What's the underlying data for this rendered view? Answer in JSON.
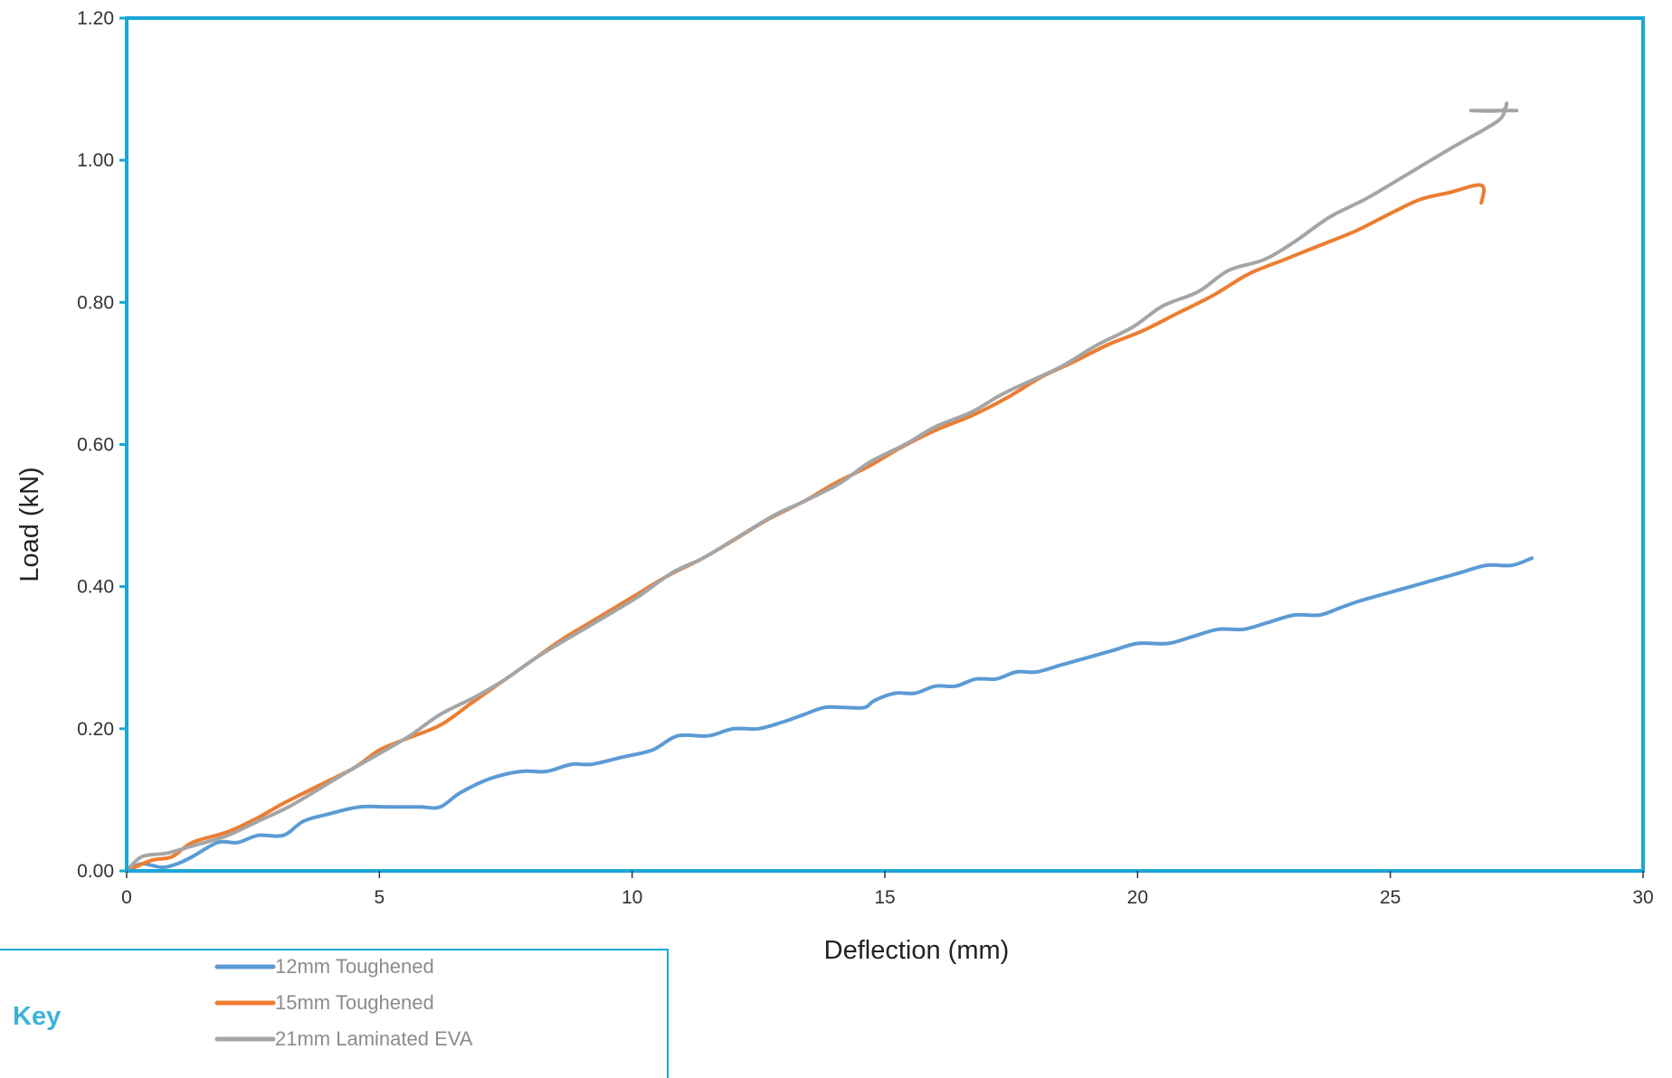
{
  "chart_data": {
    "type": "line",
    "xlabel": "Deflection (mm)",
    "ylabel": "Load (kN)",
    "xlim": [
      0,
      30
    ],
    "ylim": [
      0,
      1.2
    ],
    "x_ticks": [
      "0",
      "5",
      "10",
      "15",
      "20",
      "25",
      "30"
    ],
    "y_ticks": [
      "0.00",
      "0.20",
      "0.40",
      "0.60",
      "0.80",
      "1.00",
      "1.20"
    ],
    "grid": false,
    "legend_title": "Key",
    "legend_position": "bottom-left",
    "axis_color": "#1aa7d6",
    "series": [
      {
        "name": "12mm Toughened",
        "color": "#5b9bd5",
        "points": [
          [
            0,
            0
          ],
          [
            0.3,
            0.01
          ],
          [
            0.7,
            0.005
          ],
          [
            1.0,
            0.01
          ],
          [
            1.3,
            0.02
          ],
          [
            1.8,
            0.04
          ],
          [
            2.2,
            0.04
          ],
          [
            2.6,
            0.05
          ],
          [
            3.1,
            0.05
          ],
          [
            3.5,
            0.07
          ],
          [
            4.0,
            0.08
          ],
          [
            4.6,
            0.09
          ],
          [
            5.2,
            0.09
          ],
          [
            5.8,
            0.09
          ],
          [
            6.2,
            0.09
          ],
          [
            6.6,
            0.11
          ],
          [
            7.2,
            0.13
          ],
          [
            7.8,
            0.14
          ],
          [
            8.3,
            0.14
          ],
          [
            8.8,
            0.15
          ],
          [
            9.2,
            0.15
          ],
          [
            9.8,
            0.16
          ],
          [
            10.4,
            0.17
          ],
          [
            10.9,
            0.19
          ],
          [
            11.5,
            0.19
          ],
          [
            12.0,
            0.2
          ],
          [
            12.5,
            0.2
          ],
          [
            13.0,
            0.21
          ],
          [
            13.4,
            0.22
          ],
          [
            13.8,
            0.23
          ],
          [
            14.2,
            0.23
          ],
          [
            14.6,
            0.23
          ],
          [
            14.8,
            0.24
          ],
          [
            15.2,
            0.25
          ],
          [
            15.6,
            0.25
          ],
          [
            16.0,
            0.26
          ],
          [
            16.4,
            0.26
          ],
          [
            16.8,
            0.27
          ],
          [
            17.2,
            0.27
          ],
          [
            17.6,
            0.28
          ],
          [
            18.0,
            0.28
          ],
          [
            18.5,
            0.29
          ],
          [
            19.0,
            0.3
          ],
          [
            19.5,
            0.31
          ],
          [
            20.0,
            0.32
          ],
          [
            20.6,
            0.32
          ],
          [
            21.1,
            0.33
          ],
          [
            21.6,
            0.34
          ],
          [
            22.1,
            0.34
          ],
          [
            22.6,
            0.35
          ],
          [
            23.1,
            0.36
          ],
          [
            23.6,
            0.36
          ],
          [
            24.0,
            0.37
          ],
          [
            24.4,
            0.38
          ],
          [
            24.9,
            0.39
          ],
          [
            25.4,
            0.4
          ],
          [
            25.9,
            0.41
          ],
          [
            26.4,
            0.42
          ],
          [
            26.9,
            0.43
          ],
          [
            27.4,
            0.43
          ],
          [
            27.8,
            0.44
          ]
        ]
      },
      {
        "name": "15mm Toughened",
        "color": "#ed7d31",
        "points": [
          [
            0,
            0
          ],
          [
            0.5,
            0.015
          ],
          [
            0.9,
            0.02
          ],
          [
            1.3,
            0.04
          ],
          [
            2.0,
            0.055
          ],
          [
            2.6,
            0.075
          ],
          [
            3.1,
            0.095
          ],
          [
            3.8,
            0.12
          ],
          [
            4.5,
            0.145
          ],
          [
            5.0,
            0.17
          ],
          [
            5.5,
            0.185
          ],
          [
            6.2,
            0.205
          ],
          [
            6.8,
            0.235
          ],
          [
            7.4,
            0.265
          ],
          [
            8.0,
            0.295
          ],
          [
            8.6,
            0.325
          ],
          [
            9.3,
            0.355
          ],
          [
            10.0,
            0.385
          ],
          [
            10.7,
            0.415
          ],
          [
            11.4,
            0.44
          ],
          [
            12.0,
            0.465
          ],
          [
            12.7,
            0.495
          ],
          [
            13.4,
            0.52
          ],
          [
            14.0,
            0.545
          ],
          [
            14.7,
            0.57
          ],
          [
            15.3,
            0.595
          ],
          [
            16.0,
            0.62
          ],
          [
            16.7,
            0.64
          ],
          [
            17.4,
            0.665
          ],
          [
            18.1,
            0.695
          ],
          [
            18.7,
            0.715
          ],
          [
            19.4,
            0.74
          ],
          [
            20.1,
            0.76
          ],
          [
            20.8,
            0.785
          ],
          [
            21.5,
            0.81
          ],
          [
            22.2,
            0.84
          ],
          [
            22.9,
            0.86
          ],
          [
            23.6,
            0.88
          ],
          [
            24.3,
            0.9
          ],
          [
            25.0,
            0.925
          ],
          [
            25.6,
            0.945
          ],
          [
            26.2,
            0.955
          ],
          [
            26.7,
            0.965
          ],
          [
            26.85,
            0.96
          ],
          [
            26.8,
            0.94
          ]
        ]
      },
      {
        "name": "21mm Laminated EVA",
        "color": "#a5a5a5",
        "points": [
          [
            0,
            0
          ],
          [
            0.3,
            0.02
          ],
          [
            0.8,
            0.025
          ],
          [
            1.3,
            0.035
          ],
          [
            2.0,
            0.05
          ],
          [
            2.6,
            0.07
          ],
          [
            3.2,
            0.09
          ],
          [
            3.8,
            0.115
          ],
          [
            4.5,
            0.145
          ],
          [
            5.0,
            0.165
          ],
          [
            5.6,
            0.19
          ],
          [
            6.2,
            0.22
          ],
          [
            6.9,
            0.245
          ],
          [
            7.5,
            0.27
          ],
          [
            8.1,
            0.3
          ],
          [
            8.8,
            0.33
          ],
          [
            9.4,
            0.355
          ],
          [
            10.1,
            0.385
          ],
          [
            10.8,
            0.42
          ],
          [
            11.4,
            0.44
          ],
          [
            12.1,
            0.47
          ],
          [
            12.8,
            0.5
          ],
          [
            13.4,
            0.52
          ],
          [
            14.1,
            0.545
          ],
          [
            14.7,
            0.575
          ],
          [
            15.4,
            0.6
          ],
          [
            16.0,
            0.625
          ],
          [
            16.7,
            0.645
          ],
          [
            17.3,
            0.67
          ],
          [
            17.9,
            0.69
          ],
          [
            18.5,
            0.71
          ],
          [
            19.2,
            0.74
          ],
          [
            19.9,
            0.765
          ],
          [
            20.5,
            0.795
          ],
          [
            21.2,
            0.815
          ],
          [
            21.8,
            0.845
          ],
          [
            22.5,
            0.86
          ],
          [
            23.1,
            0.885
          ],
          [
            23.8,
            0.92
          ],
          [
            24.5,
            0.945
          ],
          [
            25.1,
            0.97
          ],
          [
            25.8,
            1.0
          ],
          [
            26.4,
            1.025
          ],
          [
            26.9,
            1.045
          ],
          [
            27.2,
            1.06
          ],
          [
            27.3,
            1.08
          ],
          [
            27.2,
            1.07
          ],
          [
            26.6,
            1.07
          ],
          [
            27.5,
            1.07
          ]
        ]
      }
    ]
  }
}
